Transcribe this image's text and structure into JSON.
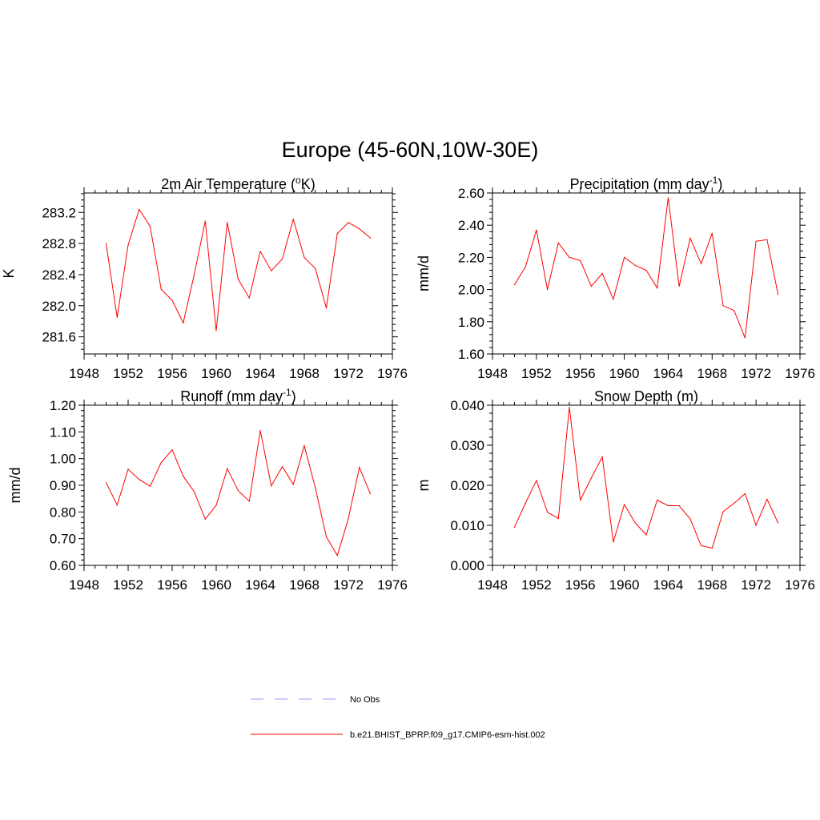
{
  "figure": {
    "title": "Europe (45-60N,10W-30E)"
  },
  "colors": {
    "series": "#ff0000",
    "obs": "#9999ff",
    "axis": "#000000"
  },
  "legend": {
    "placement": "bottom-center",
    "items": [
      {
        "label": "No Obs",
        "style": "dashed",
        "color": "#9999ff"
      },
      {
        "label": "b.e21.BHIST_BPRP.f09_g17.CMIP6-esm-hist.002",
        "style": "solid",
        "color": "#ff0000"
      }
    ]
  },
  "chart_data": [
    {
      "type": "line",
      "title": "2m Air Temperature (",
      "title_sup": "o",
      "title_after": "K)",
      "ylabel": "K",
      "xlim": [
        1948,
        1976
      ],
      "ylim": [
        281.38,
        283.45
      ],
      "xticks": [
        "1948",
        "1952",
        "1956",
        "1960",
        "1964",
        "1968",
        "1972",
        "1976"
      ],
      "yticks": [
        "281.6",
        "282.0",
        "282.4",
        "282.8",
        "283.2"
      ],
      "series": [
        {
          "x": [
            1950,
            1951,
            1952,
            1953,
            1954,
            1955,
            1956,
            1957,
            1958,
            1959,
            1960,
            1961,
            1962,
            1963,
            1964,
            1965,
            1966,
            1967,
            1968,
            1969,
            1970,
            1971,
            1972,
            1973,
            1974
          ],
          "values": [
            282.8,
            281.85,
            282.78,
            283.24,
            283.02,
            282.21,
            282.07,
            281.78,
            282.4,
            283.09,
            281.68,
            283.07,
            282.34,
            282.1,
            282.7,
            282.45,
            282.6,
            283.11,
            282.62,
            282.48,
            281.97,
            282.93,
            283.07,
            282.99,
            282.87
          ]
        }
      ]
    },
    {
      "type": "line",
      "title": "Precipitation (mm day",
      "title_sup": "-1",
      "title_after": ")",
      "ylabel": "mm/d",
      "xlim": [
        1948,
        1976
      ],
      "ylim": [
        1.6,
        2.6
      ],
      "xticks": [
        "1948",
        "1952",
        "1956",
        "1960",
        "1964",
        "1968",
        "1972",
        "1976"
      ],
      "yticks": [
        "1.60",
        "1.80",
        "2.00",
        "2.20",
        "2.40",
        "2.60"
      ],
      "series": [
        {
          "x": [
            1950,
            1951,
            1952,
            1953,
            1954,
            1955,
            1956,
            1957,
            1958,
            1959,
            1960,
            1961,
            1962,
            1963,
            1964,
            1965,
            1966,
            1967,
            1968,
            1969,
            1970,
            1971,
            1972,
            1973,
            1974
          ],
          "values": [
            2.03,
            2.14,
            2.37,
            2.0,
            2.29,
            2.2,
            2.18,
            2.02,
            2.1,
            1.94,
            2.2,
            2.15,
            2.12,
            2.01,
            2.57,
            2.02,
            2.32,
            2.16,
            2.35,
            1.9,
            1.87,
            1.7,
            2.3,
            2.31,
            1.97
          ]
        }
      ]
    },
    {
      "type": "line",
      "title": "Runoff (mm day",
      "title_sup": "-1",
      "title_after": ")",
      "ylabel": "mm/d",
      "xlim": [
        1948,
        1976
      ],
      "ylim": [
        0.6,
        1.2
      ],
      "xticks": [
        "1948",
        "1952",
        "1956",
        "1960",
        "1964",
        "1968",
        "1972",
        "1976"
      ],
      "yticks": [
        "0.60",
        "0.70",
        "0.80",
        "0.90",
        "1.00",
        "1.10",
        "1.20"
      ],
      "series": [
        {
          "x": [
            1950,
            1951,
            1952,
            1953,
            1954,
            1955,
            1956,
            1957,
            1958,
            1959,
            1960,
            1961,
            1962,
            1963,
            1964,
            1965,
            1966,
            1967,
            1968,
            1969,
            1970,
            1971,
            1972,
            1973,
            1974
          ],
          "values": [
            0.91,
            0.826,
            0.96,
            0.922,
            0.896,
            0.985,
            1.033,
            0.934,
            0.876,
            0.773,
            0.825,
            0.962,
            0.88,
            0.84,
            1.105,
            0.898,
            0.97,
            0.903,
            1.048,
            0.89,
            0.707,
            0.637,
            0.775,
            0.967,
            0.868
          ]
        }
      ]
    },
    {
      "type": "line",
      "title": "Snow Depth (m)",
      "title_sup": "",
      "title_after": "",
      "ylabel": "m",
      "xlim": [
        1948,
        1976
      ],
      "ylim": [
        0.0,
        0.04
      ],
      "xticks": [
        "1948",
        "1952",
        "1956",
        "1960",
        "1964",
        "1968",
        "1972",
        "1976"
      ],
      "yticks": [
        "0.000",
        "0.010",
        "0.020",
        "0.030",
        "0.040"
      ],
      "series": [
        {
          "x": [
            1950,
            1951,
            1952,
            1953,
            1954,
            1955,
            1956,
            1957,
            1958,
            1959,
            1960,
            1961,
            1962,
            1963,
            1964,
            1965,
            1966,
            1967,
            1968,
            1969,
            1970,
            1971,
            1972,
            1973,
            1974
          ],
          "values": [
            0.0095,
            0.0155,
            0.0212,
            0.0133,
            0.0117,
            0.0395,
            0.0163,
            0.0218,
            0.0271,
            0.0058,
            0.0152,
            0.0106,
            0.0076,
            0.0163,
            0.0149,
            0.0149,
            0.0116,
            0.0049,
            0.0043,
            0.0134,
            0.0155,
            0.0179,
            0.01,
            0.0165,
            0.0106
          ]
        }
      ]
    }
  ]
}
